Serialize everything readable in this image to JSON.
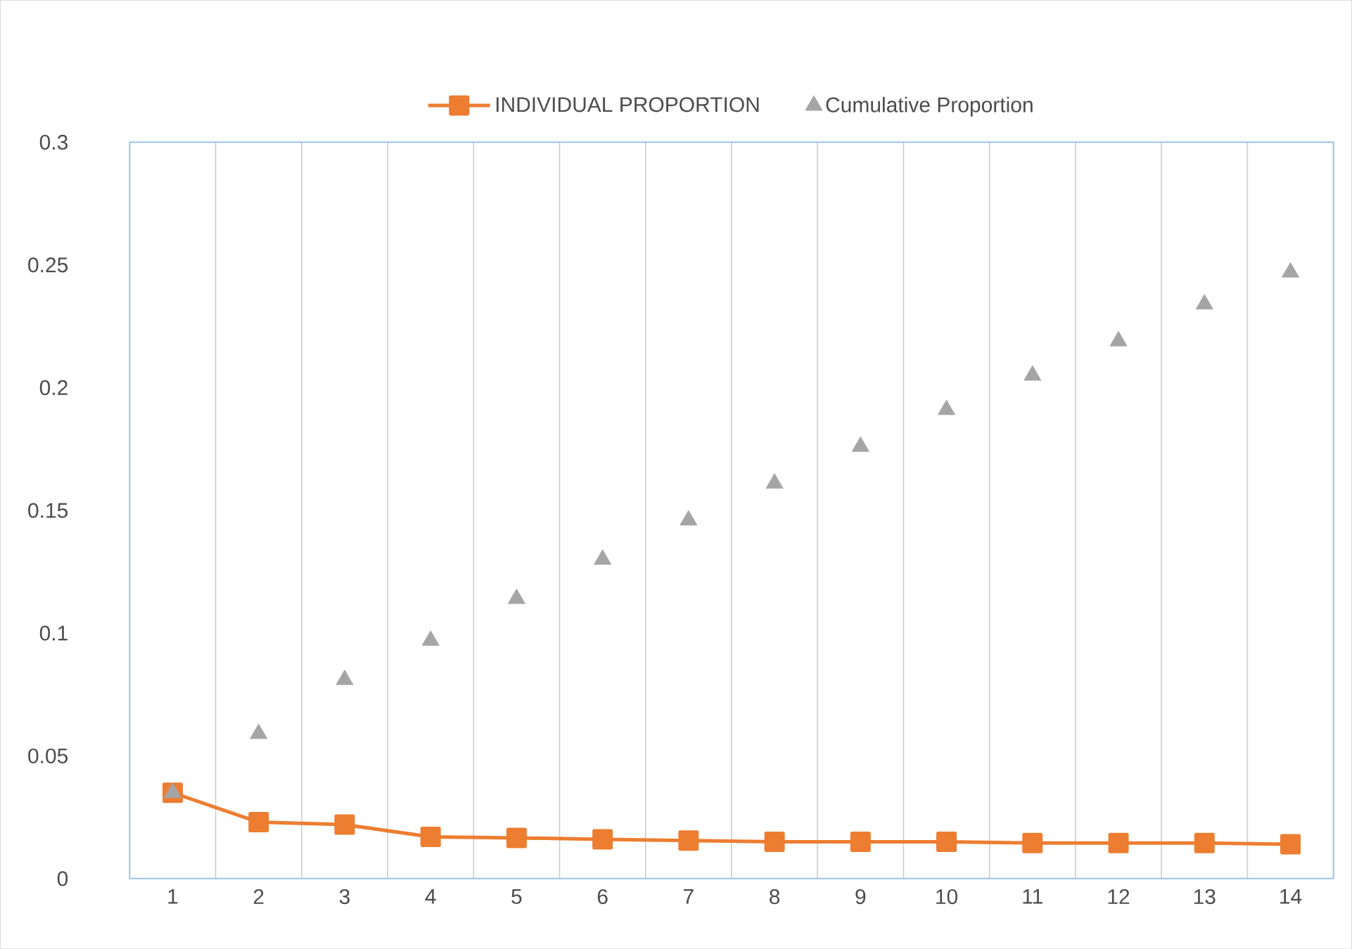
{
  "chart_data": {
    "type": "line",
    "categories": [
      "1",
      "2",
      "3",
      "4",
      "5",
      "6",
      "7",
      "8",
      "9",
      "10",
      "11",
      "12",
      "13",
      "14"
    ],
    "series": [
      {
        "name": "INDIVIDUAL PROPORTION",
        "color": "#ed7d31",
        "marker": "square",
        "values": [
          0.035,
          0.023,
          0.022,
          0.017,
          0.0166,
          0.016,
          0.0155,
          0.015,
          0.015,
          0.015,
          0.0145,
          0.0145,
          0.0145,
          0.014
        ]
      },
      {
        "name": "Cumulative Proportion",
        "type": "scatter",
        "color": "#a5a5a5",
        "marker": "triangle",
        "values": [
          0.035,
          0.059,
          0.081,
          0.097,
          0.114,
          0.13,
          0.146,
          0.161,
          0.176,
          0.191,
          0.205,
          0.219,
          0.234,
          0.247
        ]
      }
    ],
    "ylim": [
      0,
      0.3
    ],
    "yticks": [
      0,
      0.05,
      0.1,
      0.15,
      0.2,
      0.25,
      0.3
    ],
    "grid": "x",
    "legend": "top"
  }
}
